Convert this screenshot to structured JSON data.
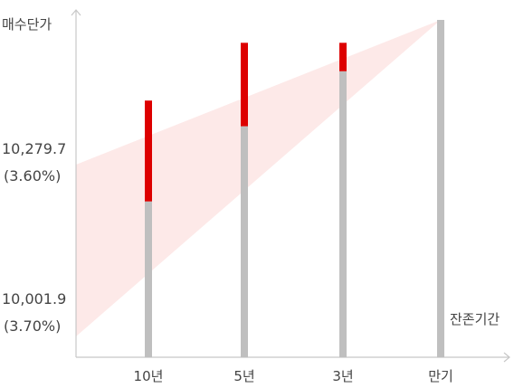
{
  "chart_data": {
    "type": "bar",
    "ylabel": "매수단가",
    "xlabel": "잔존기간",
    "categories": [
      "10년",
      "5년",
      "3년",
      "만기"
    ],
    "y_labels": [
      {
        "value": "10,279.7",
        "sub": "(3.60%)"
      },
      {
        "value": "10,001.9",
        "sub": "(3.70%)"
      }
    ],
    "series": [
      {
        "values": [
          10170,
          10252,
          10312,
          10368
        ]
      },
      {
        "values": [
          10280,
          10343,
          10343,
          null
        ]
      }
    ],
    "ylim": [
      10000,
      10368
    ],
    "colors": {
      "base": "#bfbfbf",
      "gain": "#dd0000",
      "band": "#fde9e8",
      "axis": "#c7c7c7",
      "text": "#444444"
    }
  }
}
